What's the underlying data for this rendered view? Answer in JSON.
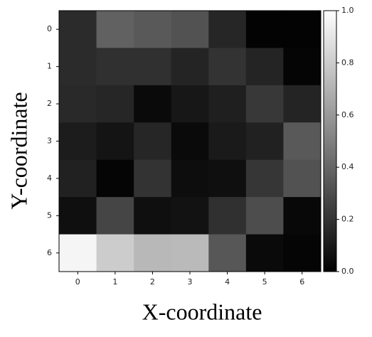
{
  "chart_data": {
    "type": "heatmap",
    "x_label": "X-coordinate",
    "y_label": "Y-coordinate",
    "x_categories": [
      0,
      1,
      2,
      3,
      4,
      5,
      6
    ],
    "y_categories": [
      0,
      1,
      2,
      3,
      4,
      5,
      6
    ],
    "z": [
      [
        0.17,
        0.38,
        0.35,
        0.32,
        0.15,
        0.01,
        0.01
      ],
      [
        0.17,
        0.19,
        0.19,
        0.14,
        0.2,
        0.14,
        0.02
      ],
      [
        0.16,
        0.15,
        0.04,
        0.09,
        0.12,
        0.22,
        0.14
      ],
      [
        0.11,
        0.08,
        0.15,
        0.04,
        0.1,
        0.13,
        0.35
      ],
      [
        0.13,
        0.02,
        0.2,
        0.05,
        0.06,
        0.21,
        0.32
      ],
      [
        0.06,
        0.27,
        0.06,
        0.07,
        0.19,
        0.3,
        0.03
      ],
      [
        0.96,
        0.8,
        0.72,
        0.73,
        0.34,
        0.04,
        0.02
      ]
    ],
    "colormap": "gray",
    "colorbar_lim": [
      0,
      1
    ],
    "colorbar_ticks": [
      {
        "value": 0,
        "label": "0.0"
      },
      0.2,
      0.4,
      0.6,
      0.8,
      {
        "value": 1,
        "label": "1.0"
      }
    ]
  }
}
